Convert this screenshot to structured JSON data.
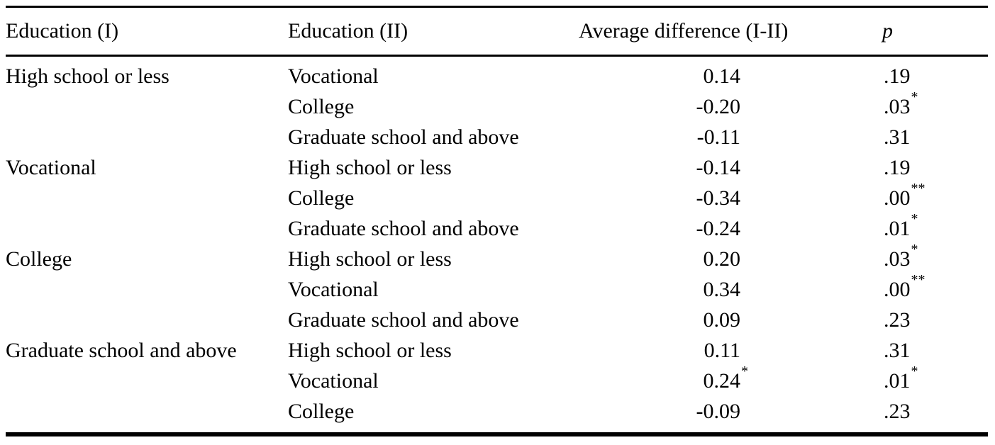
{
  "table": {
    "headers": {
      "col1": "Education (I)",
      "col2": "Education (II)",
      "col3": "Average difference (I-II)",
      "col4": "p"
    },
    "rows": [
      {
        "edu1": "High school or less",
        "edu2": "Vocational",
        "diff": "0.14",
        "diff_sig": "",
        "p": ".19",
        "p_sig": ""
      },
      {
        "edu1": "",
        "edu2": "College",
        "diff": "-0.20",
        "diff_sig": "",
        "p": ".03",
        "p_sig": "*"
      },
      {
        "edu1": "",
        "edu2": "Graduate school and above",
        "diff": "-0.11",
        "diff_sig": "",
        "p": ".31",
        "p_sig": ""
      },
      {
        "edu1": "Vocational",
        "edu2": "High school or less",
        "diff": "-0.14",
        "diff_sig": "",
        "p": ".19",
        "p_sig": ""
      },
      {
        "edu1": "",
        "edu2": "College",
        "diff": "-0.34",
        "diff_sig": "",
        "p": ".00",
        "p_sig": "**"
      },
      {
        "edu1": "",
        "edu2": "Graduate school and above",
        "diff": "-0.24",
        "diff_sig": "",
        "p": ".01",
        "p_sig": "*"
      },
      {
        "edu1": "College",
        "edu2": "High school or less",
        "diff": "0.20",
        "diff_sig": "",
        "p": ".03",
        "p_sig": "*"
      },
      {
        "edu1": "",
        "edu2": "Vocational",
        "diff": "0.34",
        "diff_sig": "",
        "p": ".00",
        "p_sig": "**"
      },
      {
        "edu1": "",
        "edu2": "Graduate school and above",
        "diff": "0.09",
        "diff_sig": "",
        "p": ".23",
        "p_sig": ""
      },
      {
        "edu1": "Graduate school and above",
        "edu2": "High school or less",
        "diff": "0.11",
        "diff_sig": "",
        "p": ".31",
        "p_sig": ""
      },
      {
        "edu1": "",
        "edu2": "Vocational",
        "diff": "0.24",
        "diff_sig": "*",
        "p": ".01",
        "p_sig": "*"
      },
      {
        "edu1": "",
        "edu2": "College",
        "diff": "-0.09",
        "diff_sig": "",
        "p": ".23",
        "p_sig": ""
      }
    ]
  }
}
